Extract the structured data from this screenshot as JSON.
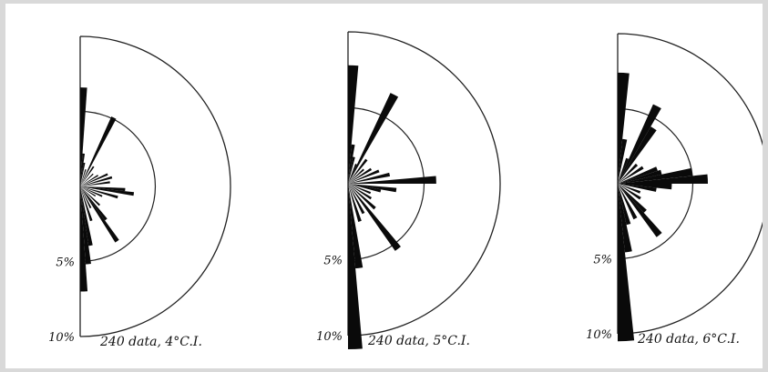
{
  "chart_data": [
    {
      "type": "rose",
      "shape": "half",
      "caption": "240 data, 4°C.I.",
      "rings_pct": [
        5,
        10
      ],
      "tick_labels": [
        "5%",
        "10%"
      ],
      "class_interval_deg": 4,
      "bins": [
        {
          "angle_deg": 2,
          "pct": 6.6
        },
        {
          "angle_deg": 6,
          "pct": 2.2
        },
        {
          "angle_deg": 10,
          "pct": 1.6
        },
        {
          "angle_deg": 18,
          "pct": 1.2
        },
        {
          "angle_deg": 26,
          "pct": 5.1
        },
        {
          "angle_deg": 34,
          "pct": 1.6
        },
        {
          "angle_deg": 46,
          "pct": 1.2
        },
        {
          "angle_deg": 58,
          "pct": 1.4
        },
        {
          "angle_deg": 66,
          "pct": 2.0
        },
        {
          "angle_deg": 74,
          "pct": 2.2
        },
        {
          "angle_deg": 82,
          "pct": 2.0
        },
        {
          "angle_deg": 94,
          "pct": 3.0
        },
        {
          "angle_deg": 98,
          "pct": 3.6
        },
        {
          "angle_deg": 106,
          "pct": 2.6
        },
        {
          "angle_deg": 114,
          "pct": 1.6
        },
        {
          "angle_deg": 122,
          "pct": 1.2
        },
        {
          "angle_deg": 134,
          "pct": 1.8
        },
        {
          "angle_deg": 142,
          "pct": 2.8
        },
        {
          "angle_deg": 146,
          "pct": 4.4
        },
        {
          "angle_deg": 154,
          "pct": 1.6
        },
        {
          "angle_deg": 162,
          "pct": 2.4
        },
        {
          "angle_deg": 170,
          "pct": 4.0
        },
        {
          "angle_deg": 174,
          "pct": 5.2
        },
        {
          "angle_deg": 178,
          "pct": 7.0
        }
      ]
    },
    {
      "type": "rose",
      "shape": "half",
      "caption": "240 data, 5°C.I.",
      "rings_pct": [
        5,
        10
      ],
      "tick_labels": [
        "5%",
        "10%"
      ],
      "class_interval_deg": 5,
      "bins": [
        {
          "angle_deg": 2.5,
          "pct": 7.8
        },
        {
          "angle_deg": 7.5,
          "pct": 2.6
        },
        {
          "angle_deg": 12.5,
          "pct": 1.8
        },
        {
          "angle_deg": 22.5,
          "pct": 1.4
        },
        {
          "angle_deg": 27.5,
          "pct": 6.6
        },
        {
          "angle_deg": 37.5,
          "pct": 2.0
        },
        {
          "angle_deg": 47.5,
          "pct": 1.4
        },
        {
          "angle_deg": 57.5,
          "pct": 1.8
        },
        {
          "angle_deg": 67.5,
          "pct": 2.2
        },
        {
          "angle_deg": 77.5,
          "pct": 2.8
        },
        {
          "angle_deg": 87.5,
          "pct": 5.8
        },
        {
          "angle_deg": 97.5,
          "pct": 3.2
        },
        {
          "angle_deg": 102.5,
          "pct": 2.2
        },
        {
          "angle_deg": 112.5,
          "pct": 1.6
        },
        {
          "angle_deg": 122.5,
          "pct": 1.8
        },
        {
          "angle_deg": 132.5,
          "pct": 2.4
        },
        {
          "angle_deg": 142.5,
          "pct": 5.4
        },
        {
          "angle_deg": 152.5,
          "pct": 2.2
        },
        {
          "angle_deg": 162.5,
          "pct": 2.6
        },
        {
          "angle_deg": 172.5,
          "pct": 5.6
        },
        {
          "angle_deg": 177.5,
          "pct": 10.9
        }
      ]
    },
    {
      "type": "rose",
      "shape": "half",
      "caption": "240 data, 6°C.I.",
      "rings_pct": [
        5,
        10
      ],
      "tick_labels": [
        "5%",
        "10%"
      ],
      "class_interval_deg": 6,
      "bins": [
        {
          "angle_deg": 3,
          "pct": 7.4
        },
        {
          "angle_deg": 9,
          "pct": 3.0
        },
        {
          "angle_deg": 21,
          "pct": 1.8
        },
        {
          "angle_deg": 27,
          "pct": 5.8
        },
        {
          "angle_deg": 33,
          "pct": 4.4
        },
        {
          "angle_deg": 45,
          "pct": 1.8
        },
        {
          "angle_deg": 57,
          "pct": 2.0
        },
        {
          "angle_deg": 69,
          "pct": 2.8
        },
        {
          "angle_deg": 75,
          "pct": 3.0
        },
        {
          "angle_deg": 81,
          "pct": 5.0
        },
        {
          "angle_deg": 87,
          "pct": 6.0
        },
        {
          "angle_deg": 93,
          "pct": 3.6
        },
        {
          "angle_deg": 99,
          "pct": 2.6
        },
        {
          "angle_deg": 111,
          "pct": 1.6
        },
        {
          "angle_deg": 123,
          "pct": 1.8
        },
        {
          "angle_deg": 135,
          "pct": 2.6
        },
        {
          "angle_deg": 141,
          "pct": 4.4
        },
        {
          "angle_deg": 153,
          "pct": 2.6
        },
        {
          "angle_deg": 165,
          "pct": 2.8
        },
        {
          "angle_deg": 171,
          "pct": 4.6
        },
        {
          "angle_deg": 177,
          "pct": 10.5
        }
      ]
    }
  ]
}
